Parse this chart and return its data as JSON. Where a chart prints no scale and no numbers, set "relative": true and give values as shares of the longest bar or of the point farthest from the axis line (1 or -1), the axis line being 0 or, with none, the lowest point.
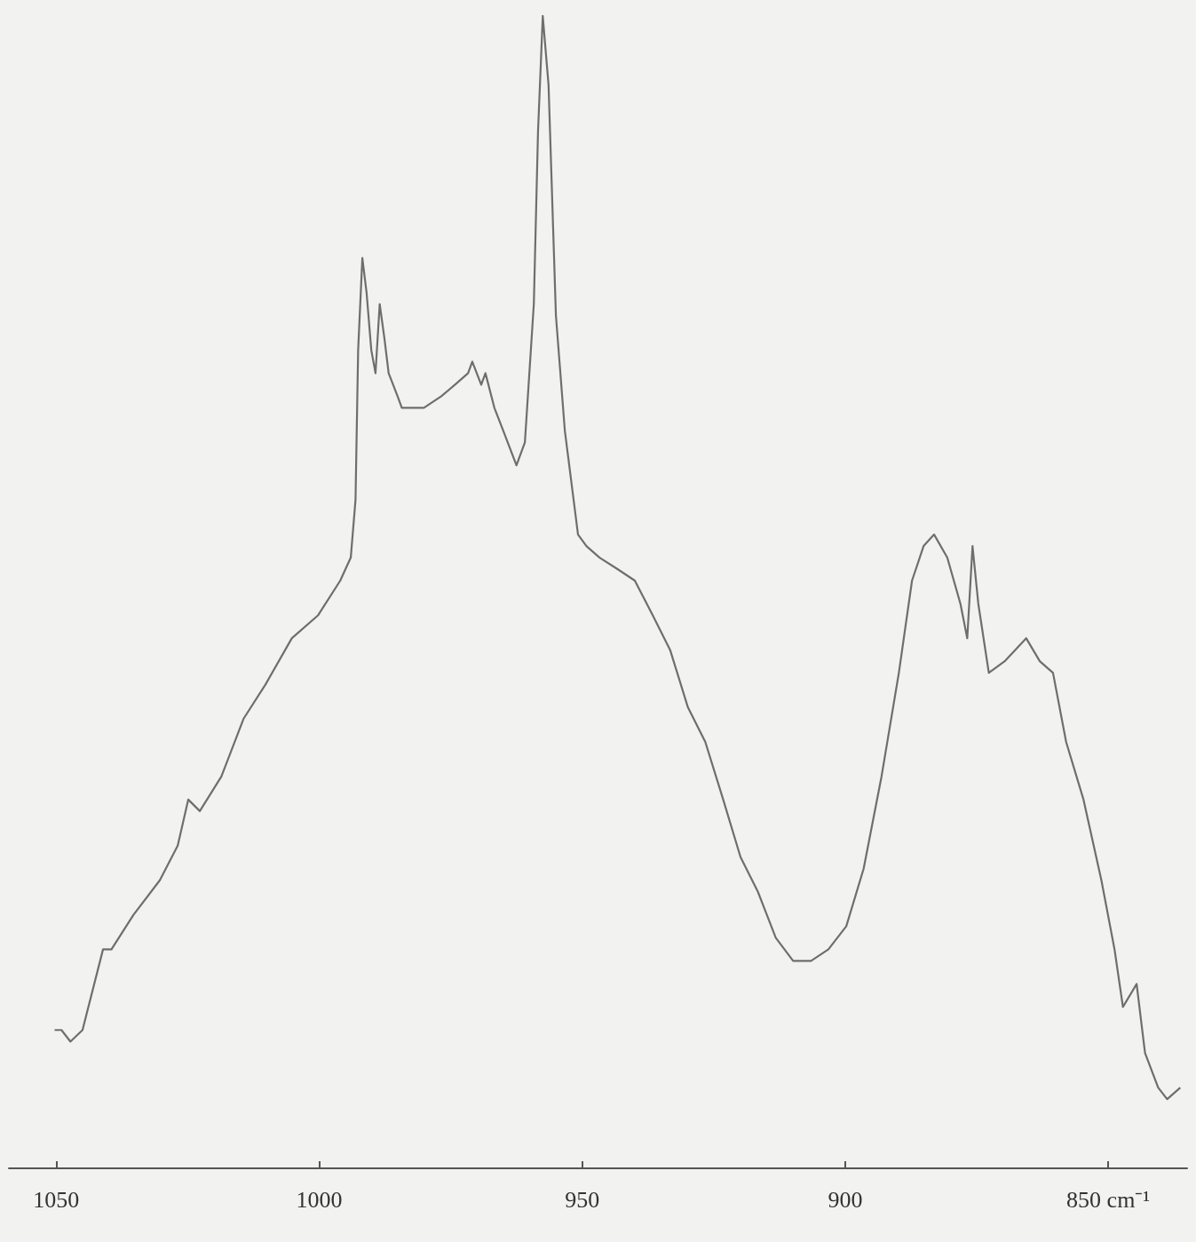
{
  "chart_data": {
    "type": "line",
    "relative": true,
    "marker": "none",
    "line_style": "solid",
    "xlim": [
      1059,
      835
    ],
    "xticks": [
      1050,
      1000,
      950,
      900,
      {
        "value": 850,
        "label": "850 cm⁻¹"
      }
    ],
    "series": [
      {
        "color": "#6e6e6e",
        "x": [
          1050.3,
          1049.0,
          1047.3,
          1045.0,
          1041.1,
          1039.5,
          1035.3,
          1030.3,
          1026.9,
          1024.9,
          1022.7,
          1018.6,
          1014.4,
          1010.2,
          1005.2,
          1000.2,
          996.0,
          994.0,
          993.1,
          992.6,
          991.8,
          991.0,
          990.1,
          989.3,
          988.5,
          987.6,
          986.8,
          985.1,
          984.3,
          982.6,
          980.1,
          976.8,
          974.2,
          971.7,
          970.9,
          969.2,
          968.4,
          966.7,
          965.0,
          962.5,
          960.9,
          959.2,
          958.4,
          957.5,
          956.4,
          955.0,
          953.3,
          950.8,
          949.2,
          946.7,
          943.3,
          940.0,
          936.6,
          933.3,
          929.9,
          926.6,
          923.2,
          919.9,
          916.6,
          913.2,
          909.9,
          906.5,
          903.2,
          899.8,
          896.5,
          893.1,
          889.8,
          887.3,
          885.1,
          883.1,
          880.6,
          878.1,
          876.8,
          875.8,
          874.7,
          872.7,
          869.7,
          865.6,
          863.0,
          860.5,
          858.0,
          854.7,
          851.3,
          848.8,
          847.2,
          844.6,
          843.0,
          840.5,
          838.8,
          836.3
        ],
        "values": [
          0.12,
          0.12,
          0.11,
          0.12,
          0.19,
          0.19,
          0.22,
          0.25,
          0.28,
          0.32,
          0.31,
          0.34,
          0.39,
          0.42,
          0.46,
          0.48,
          0.51,
          0.53,
          0.58,
          0.71,
          0.79,
          0.76,
          0.71,
          0.69,
          0.75,
          0.72,
          0.69,
          0.67,
          0.66,
          0.66,
          0.66,
          0.67,
          0.68,
          0.69,
          0.7,
          0.68,
          0.69,
          0.66,
          0.64,
          0.61,
          0.63,
          0.75,
          0.9,
          1,
          0.94,
          0.74,
          0.64,
          0.55,
          0.54,
          0.53,
          0.52,
          0.51,
          0.48,
          0.45,
          0.4,
          0.37,
          0.32,
          0.27,
          0.24,
          0.2,
          0.18,
          0.18,
          0.19,
          0.21,
          0.26,
          0.34,
          0.43,
          0.51,
          0.54,
          0.55,
          0.53,
          0.49,
          0.46,
          0.54,
          0.49,
          0.43,
          0.44,
          0.46,
          0.44,
          0.43,
          0.37,
          0.32,
          0.25,
          0.19,
          0.14,
          0.16,
          0.1,
          0.07,
          0.06,
          0.07
        ]
      }
    ]
  }
}
